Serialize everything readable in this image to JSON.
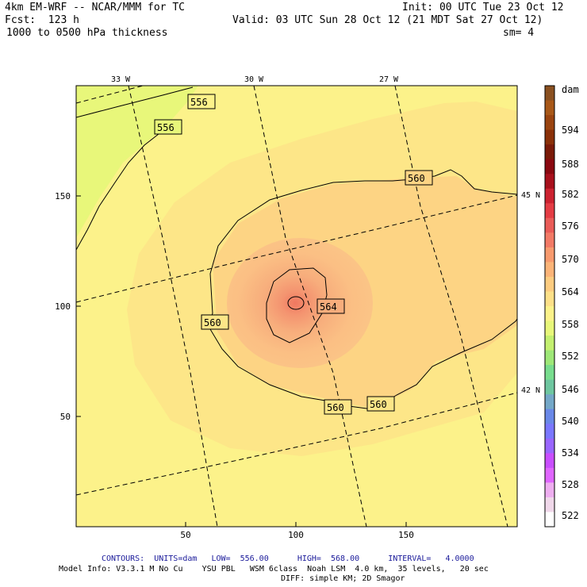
{
  "header": {
    "model": "4km EM-WRF -- NCAR/MMM for TC",
    "init": "Init: 00 UTC Tue 23 Oct 12",
    "fcst": "Fcst:  123 h",
    "valid": "Valid: 03 UTC Sun 28 Oct 12 (21 MDT Sat 27 Oct 12)",
    "field": "1000 to 0500 hPa thickness",
    "smooth": "sm= 4"
  },
  "axes": {
    "x_ticks": [
      "50",
      "100",
      "150"
    ],
    "y_ticks": [
      "150",
      "100",
      "50"
    ],
    "lon_labels": [
      "33 W",
      "30 W",
      "27 W"
    ],
    "lat_labels": [
      "45 N",
      "42 N"
    ]
  },
  "contour_labels": [
    "556",
    "556",
    "560",
    "560",
    "560",
    "560",
    "564"
  ],
  "colorbar": {
    "unit": "dam",
    "labels": [
      "594",
      "588",
      "582",
      "576",
      "570",
      "564",
      "558",
      "552",
      "546",
      "540",
      "534",
      "528",
      "522"
    ],
    "colors": [
      "#ffffff",
      "#f0d8ea",
      "#eeaef0",
      "#e066ff",
      "#c94eff",
      "#9966ff",
      "#7a77ff",
      "#6a88e8",
      "#74a8c8",
      "#6ec6a0",
      "#78dd8e",
      "#9ee878",
      "#c4f070",
      "#e8f77a",
      "#fcf28a",
      "#fde088",
      "#fdcc80",
      "#fcb478",
      "#f89a6e",
      "#f27a66",
      "#ea5c58",
      "#e43c44",
      "#cc2230",
      "#a8101c",
      "#8a0810",
      "#7a1a08",
      "#8a3008",
      "#9a4410",
      "#a85818",
      "#8a5020"
    ]
  },
  "footer": {
    "contours": "CONTOURS:  UNITS=dam   LOW=  556.00      HIGH=  568.00      INTERVAL=   4.0000",
    "model_info": "Model Info: V3.3.1 M No Cu    YSU PBL   WSM 6class  Noah LSM  4.0 km,  35 levels,   20 sec",
    "diff": "DIFF: simple KM; 2D Smagor"
  }
}
